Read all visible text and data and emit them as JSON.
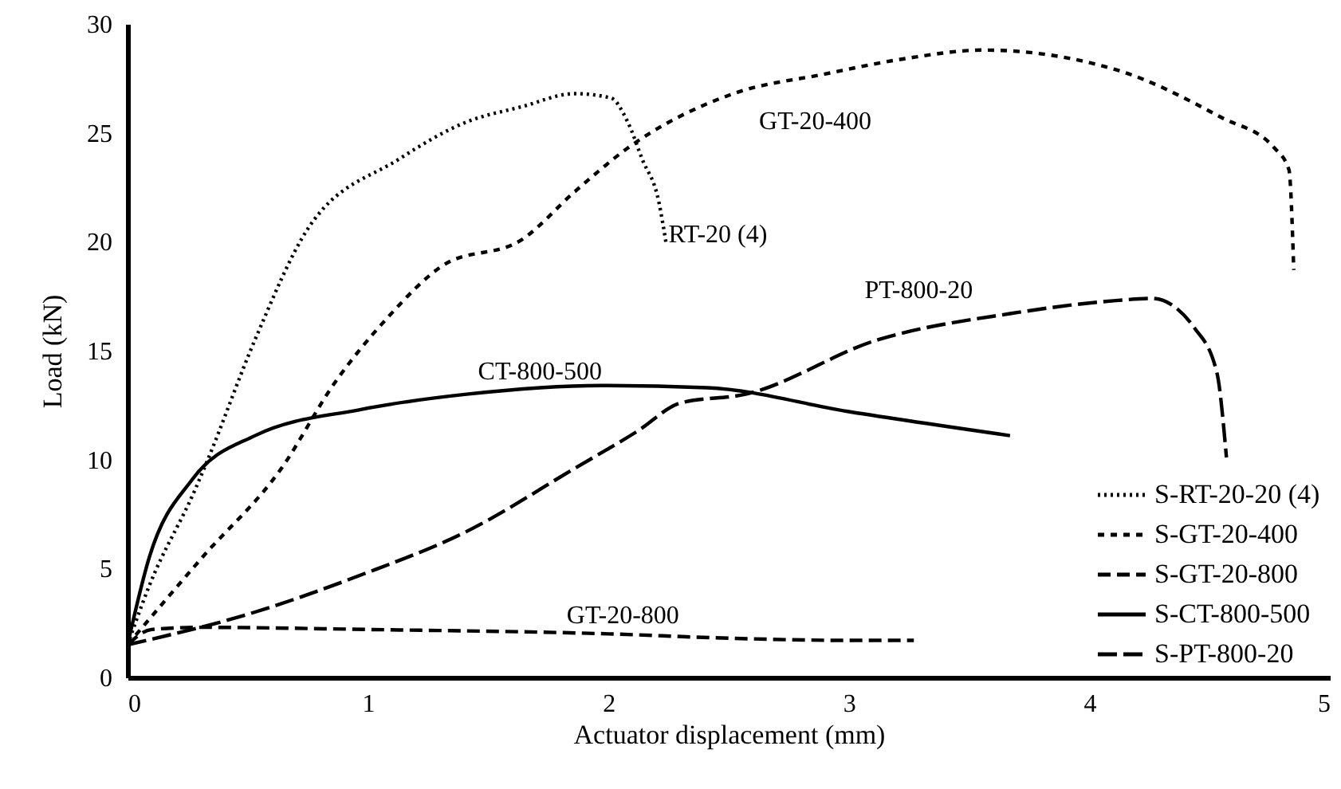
{
  "chart_data": {
    "type": "line",
    "xlabel": "Actuator displacement (mm)",
    "ylabel": "Load (kN)",
    "xlim": [
      0,
      5
    ],
    "xticks": [
      0,
      1,
      2,
      3,
      4,
      5
    ],
    "ylim": [
      0,
      30
    ],
    "yticks": [
      0,
      5,
      10,
      15,
      20,
      25,
      30
    ],
    "legend": "bottom right",
    "series": [
      {
        "name": "S-RT-20-20 (4)",
        "color": "#000000",
        "line_style": "dotted",
        "x": [
          0,
          0.09,
          0.28,
          0.33,
          0.53,
          0.75,
          1.13,
          1.41,
          1.64,
          1.86,
          2.01,
          2.08,
          2.14,
          2.21,
          2.24
        ],
        "values": [
          1.5,
          4.2,
          8.6,
          9.9,
          15.5,
          20.6,
          23.8,
          25.5,
          26.2,
          26.8,
          26.6,
          25.5,
          23.8,
          21.8,
          19.9
        ]
      },
      {
        "name": "S-GT-20-400",
        "color": "#000000",
        "line_style": "dashed",
        "x": [
          0,
          0.31,
          0.64,
          0.86,
          1.08,
          1.31,
          1.64,
          1.86,
          2.08,
          2.52,
          2.9,
          3.23,
          3.56,
          4.11,
          4.55,
          4.77,
          4.83,
          4.85
        ],
        "values": [
          1.5,
          5.5,
          9.6,
          13.5,
          16.5,
          18.9,
          20.1,
          22.3,
          24.3,
          26.8,
          27.7,
          28.4,
          28.8,
          27.9,
          25.7,
          24.3,
          23.3,
          18.7
        ]
      },
      {
        "name": "S-GT-20-800",
        "color": "#000000",
        "line_style": "dashed",
        "x": [
          0,
          0.1,
          0.3,
          1,
          2,
          2.5,
          3,
          3.27
        ],
        "values": [
          1.5,
          2.2,
          2.3,
          2.2,
          2.0,
          1.8,
          1.7,
          1.7
        ]
      },
      {
        "name": "S-CT-800-500",
        "color": "#000000",
        "line_style": "solid",
        "x": [
          0,
          0.09,
          0.27,
          0.53,
          0.97,
          1.41,
          1.97,
          2.41,
          3.0,
          3.67
        ],
        "values": [
          1.5,
          5.5,
          9.1,
          11.1,
          12.3,
          13.0,
          13.4,
          13.3,
          12.2,
          11.1
        ]
      },
      {
        "name": "S-PT-800-20",
        "color": "#000000",
        "line_style": "dashed",
        "x": [
          0,
          0.53,
          0.97,
          1.41,
          1.86,
          2.12,
          2.3,
          2.57,
          3.12,
          3.67,
          4.11,
          4.26,
          4.44,
          4.53,
          4.57
        ],
        "values": [
          1.5,
          3.0,
          4.7,
          6.7,
          9.6,
          11.3,
          12.6,
          13.0,
          15.5,
          16.7,
          17.3,
          17.4,
          16.0,
          14.0,
          10.1
        ]
      }
    ],
    "annotations": [
      "GT-20-400",
      "RT-20 (4)",
      "PT-800-20",
      "CT-800-500",
      "GT-20-800"
    ]
  }
}
